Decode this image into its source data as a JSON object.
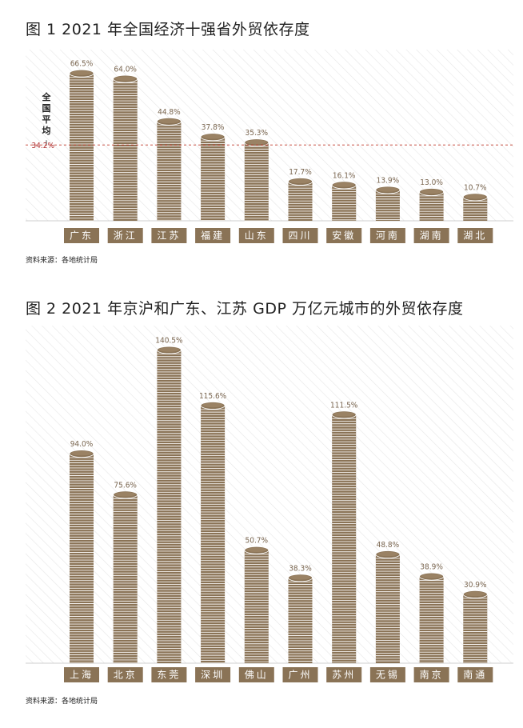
{
  "figures": [
    {
      "title": "图 1  2021 年全国经济十强省外贸依存度",
      "source": "资料来源：各地统计局",
      "average_label": "全国平均",
      "chart_data": {
        "type": "bar",
        "categories": [
          "广东",
          "浙江",
          "江苏",
          "福建",
          "山东",
          "四川",
          "安徽",
          "河南",
          "湖南",
          "湖北"
        ],
        "values": [
          66.5,
          64.0,
          44.8,
          37.8,
          35.3,
          17.7,
          16.1,
          13.9,
          13.0,
          10.7
        ],
        "value_labels": [
          "66.5%",
          "64.0%",
          "44.8%",
          "37.8%",
          "35.3%",
          "17.7%",
          "16.1%",
          "13.9%",
          "13.0%",
          "10.7%"
        ],
        "reference_line": {
          "label": "全国平均",
          "value": 34.2,
          "value_label": "34.2%"
        },
        "ylim": [
          0,
          70
        ]
      }
    },
    {
      "title": "图 2  2021 年京沪和广东、江苏 GDP 万亿元城市的外贸依存度",
      "source": "资料来源：各地统计局",
      "chart_data": {
        "type": "bar",
        "categories": [
          "上海",
          "北京",
          "东莞",
          "深圳",
          "佛山",
          "广州",
          "苏州",
          "无锡",
          "南京",
          "南通"
        ],
        "values": [
          94.0,
          75.6,
          140.5,
          115.6,
          50.7,
          38.3,
          111.5,
          48.8,
          38.9,
          30.9
        ],
        "value_labels": [
          "94.0%",
          "75.6%",
          "140.5%",
          "115.6%",
          "50.7%",
          "38.3%",
          "111.5%",
          "48.8%",
          "38.9%",
          "30.9%"
        ],
        "ylim": [
          0,
          145
        ]
      }
    }
  ],
  "colors": {
    "bar": "#8a7356",
    "bar_stripe": "#ffffff",
    "label_box": "#8a7356",
    "label_text": "#ffffff",
    "value_text": "#7a6650",
    "reference_line": "#c0392b",
    "reference_text": "#b03030",
    "background_hatch": "#e6e6e6"
  }
}
